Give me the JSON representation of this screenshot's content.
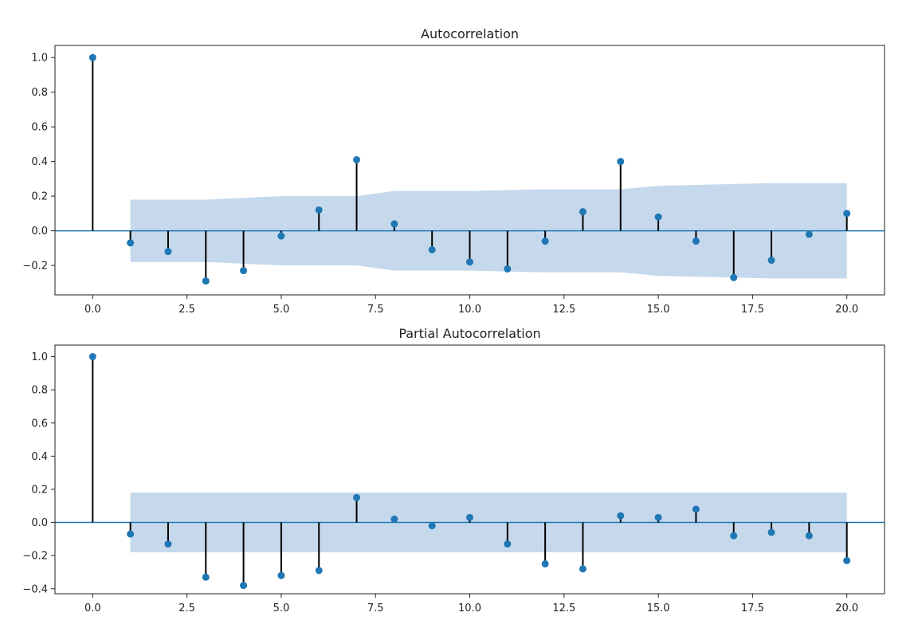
{
  "colors": {
    "marker": "#1f77b4",
    "band": "#c6d9ec",
    "stem": "#000000",
    "zero_line": "#1f77b4"
  },
  "chart_data": [
    {
      "type": "stem",
      "title": "Autocorrelation",
      "xlim": [
        -1,
        21
      ],
      "ylim": [
        -0.37,
        1.07
      ],
      "xticks": [
        0,
        2.5,
        5,
        7.5,
        10,
        12.5,
        15,
        17.5,
        20
      ],
      "xtick_labels": [
        "0.0",
        "2.5",
        "5.0",
        "7.5",
        "10.0",
        "12.5",
        "15.0",
        "17.5",
        "20.0"
      ],
      "yticks": [
        -0.2,
        0,
        0.2,
        0.4,
        0.6,
        0.8,
        1.0
      ],
      "ytick_labels": [
        "−0.2",
        "0.0",
        "0.2",
        "0.4",
        "0.6",
        "0.8",
        "1.0"
      ],
      "lags": [
        0,
        1,
        2,
        3,
        4,
        5,
        6,
        7,
        8,
        9,
        10,
        11,
        12,
        13,
        14,
        15,
        16,
        17,
        18,
        19,
        20
      ],
      "values": [
        1.0,
        -0.07,
        -0.12,
        -0.29,
        -0.23,
        -0.03,
        0.12,
        0.41,
        0.04,
        -0.11,
        -0.18,
        -0.22,
        -0.06,
        0.11,
        0.4,
        0.08,
        -0.06,
        -0.27,
        -0.17,
        -0.02,
        0.1
      ],
      "confidence_band": {
        "lags": [
          1,
          2,
          3,
          4,
          5,
          6,
          7,
          8,
          9,
          10,
          11,
          12,
          13,
          14,
          15,
          16,
          17,
          18,
          19,
          20
        ],
        "upper": [
          0.18,
          0.18,
          0.18,
          0.19,
          0.2,
          0.2,
          0.2,
          0.23,
          0.23,
          0.23,
          0.235,
          0.24,
          0.24,
          0.24,
          0.26,
          0.265,
          0.27,
          0.275,
          0.275,
          0.275
        ]
      }
    },
    {
      "type": "stem",
      "title": "Partial Autocorrelation",
      "xlim": [
        -1,
        21
      ],
      "ylim": [
        -0.43,
        1.07
      ],
      "xticks": [
        0,
        2.5,
        5,
        7.5,
        10,
        12.5,
        15,
        17.5,
        20
      ],
      "xtick_labels": [
        "0.0",
        "2.5",
        "5.0",
        "7.5",
        "10.0",
        "12.5",
        "15.0",
        "17.5",
        "20.0"
      ],
      "yticks": [
        -0.4,
        -0.2,
        0,
        0.2,
        0.4,
        0.6,
        0.8,
        1.0
      ],
      "ytick_labels": [
        "−0.4",
        "−0.2",
        "0.0",
        "0.2",
        "0.4",
        "0.6",
        "0.8",
        "1.0"
      ],
      "lags": [
        0,
        1,
        2,
        3,
        4,
        5,
        6,
        7,
        8,
        9,
        10,
        11,
        12,
        13,
        14,
        15,
        16,
        17,
        18,
        19,
        20
      ],
      "values": [
        1.0,
        -0.07,
        -0.13,
        -0.33,
        -0.38,
        -0.32,
        -0.29,
        0.15,
        0.02,
        -0.02,
        0.03,
        -0.13,
        -0.25,
        -0.28,
        0.04,
        0.03,
        0.08,
        -0.08,
        -0.06,
        -0.08,
        -0.23
      ],
      "confidence_band": {
        "lags": [
          1,
          20
        ],
        "upper": [
          0.18,
          0.18
        ]
      }
    }
  ]
}
